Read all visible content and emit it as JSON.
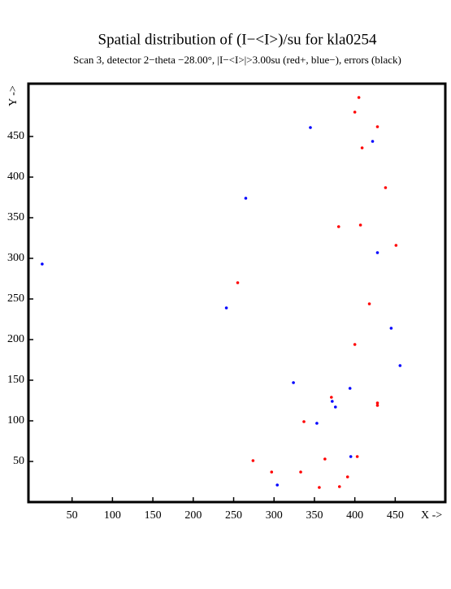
{
  "chart_data": {
    "type": "scatter",
    "title": "Spatial distribution of (I−<I>)/su for kla0254",
    "subtitle": "Scan  3, detector 2−theta −28.00°, |I−<I>|>3.00su (red+, blue−), errors (black)",
    "x_label": "X ->",
    "y_label": "Y ->",
    "xlim": [
      -4,
      512
    ],
    "ylim": [
      0,
      515
    ],
    "xticks": [
      50,
      100,
      150,
      200,
      250,
      300,
      350,
      400,
      450
    ],
    "yticks": [
      50,
      100,
      150,
      200,
      250,
      300,
      350,
      400,
      450
    ],
    "series": [
      {
        "color": "#ff0000",
        "x": [
          405,
          400,
          428,
          409,
          438,
          380,
          407,
          451,
          255,
          418,
          400,
          371,
          428,
          428,
          337,
          403,
          363,
          274,
          297,
          333,
          391,
          356,
          381
        ],
        "values": [
          498,
          480,
          462,
          436,
          387,
          339,
          341,
          316,
          270,
          244,
          194,
          129,
          122,
          119,
          99,
          56,
          53,
          51,
          37,
          37,
          31,
          18,
          19
        ]
      },
      {
        "color": "#0000ff",
        "x": [
          345,
          422,
          265,
          13,
          428,
          241,
          445,
          456,
          324,
          394,
          372,
          376,
          353,
          395,
          304
        ],
        "values": [
          461,
          444,
          374,
          293,
          307,
          239,
          214,
          168,
          147,
          140,
          124,
          117,
          97,
          56,
          21
        ]
      }
    ]
  }
}
